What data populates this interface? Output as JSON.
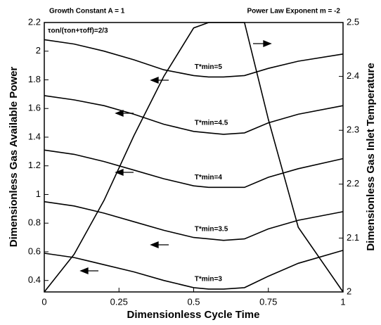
{
  "chart_data": {
    "type": "line",
    "annotations": [
      "Growth Constant A = 1",
      "Power Law Exponent m = -2",
      "τon/(τon+τoff)=2/3"
    ],
    "xlabel": "Dimensionless Cycle Time",
    "ylabel": "Dimensionless Gas Available Power",
    "y2label": "Dimensionless Gas Inlet Temperature",
    "x": [
      0,
      0.1,
      0.2,
      0.3,
      0.4,
      0.5,
      0.55,
      0.6,
      0.67,
      0.75,
      0.85,
      1
    ],
    "series": [
      {
        "name": "T*min=5",
        "color": "#000000",
        "values": [
          2.08,
          2.05,
          2.0,
          1.94,
          1.87,
          1.83,
          1.82,
          1.82,
          1.83,
          1.88,
          1.93,
          1.98
        ]
      },
      {
        "name": "T*min=4.5",
        "color": "#000000",
        "values": [
          1.69,
          1.66,
          1.62,
          1.56,
          1.49,
          1.44,
          1.43,
          1.42,
          1.43,
          1.5,
          1.56,
          1.62
        ]
      },
      {
        "name": "T*min=4",
        "color": "#000000",
        "values": [
          1.31,
          1.28,
          1.23,
          1.17,
          1.11,
          1.06,
          1.05,
          1.05,
          1.05,
          1.12,
          1.18,
          1.25
        ]
      },
      {
        "name": "T*min=3.5",
        "color": "#000000",
        "values": [
          0.95,
          0.92,
          0.87,
          0.81,
          0.75,
          0.7,
          0.69,
          0.68,
          0.69,
          0.76,
          0.82,
          0.88
        ]
      },
      {
        "name": "T*min=3",
        "color": "#000000",
        "values": [
          0.59,
          0.56,
          0.51,
          0.46,
          0.4,
          0.35,
          0.34,
          0.34,
          0.35,
          0.43,
          0.52,
          0.61
        ]
      },
      {
        "name": "Temperature",
        "color": "#000000",
        "axis": "y2",
        "values": [
          2.0,
          2.07,
          2.17,
          2.29,
          2.4,
          2.49,
          2.5,
          2.5,
          2.5,
          2.32,
          2.12,
          2.0
        ]
      }
    ],
    "xlim": [
      0,
      1
    ],
    "xticks": [
      0,
      0.25,
      0.5,
      0.75,
      1
    ],
    "ylim": [
      0.32,
      2.2
    ],
    "yticks": [
      0.4,
      0.6,
      0.8,
      1,
      1.2,
      1.4,
      1.6,
      1.8,
      2,
      2.2
    ],
    "y2lim": [
      2,
      2.5
    ],
    "y2ticks": [
      2,
      2.1,
      2.2,
      2.3,
      2.4,
      2.5
    ],
    "grid": false
  }
}
